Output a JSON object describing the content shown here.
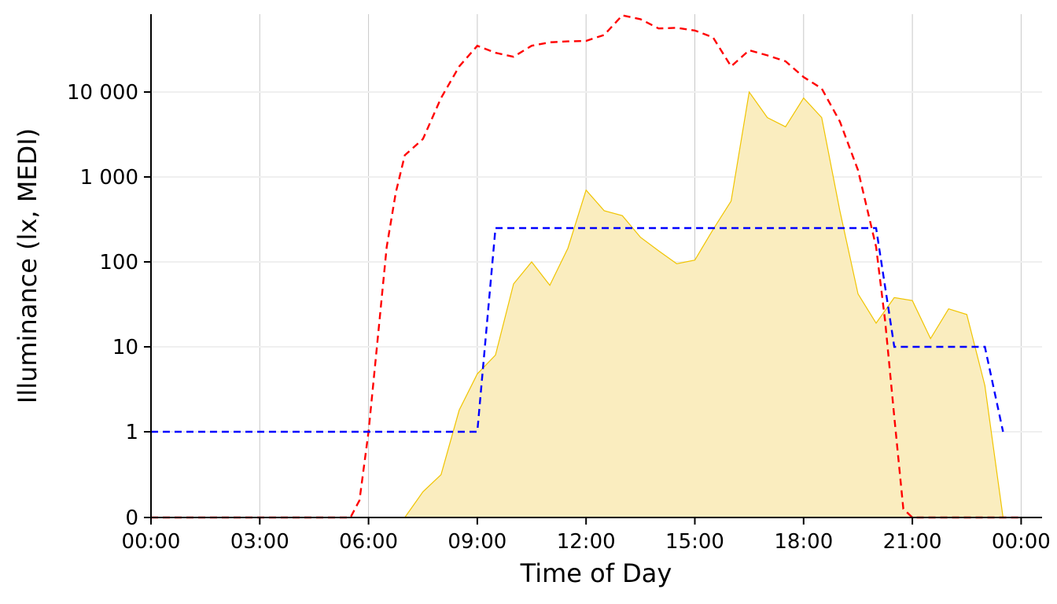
{
  "chart_data": {
    "type": "line",
    "xlabel": "Time of Day",
    "ylabel": "Illuminance (lx, MEDI)",
    "x_ticks": [
      "00:00",
      "03:00",
      "06:00",
      "09:00",
      "12:00",
      "15:00",
      "18:00",
      "21:00",
      "00:00"
    ],
    "y_ticks": [
      "0",
      "1",
      "10",
      "100",
      "1 000",
      "10 000"
    ],
    "xlim": [
      "00:00",
      "24:30"
    ],
    "y_scale": "symlog",
    "grid": "vertical major, faint horizontal",
    "legend": "none",
    "series": [
      {
        "type": "area",
        "color": "#f0c400",
        "fill": "#faedbf",
        "x": [
          "00:00",
          "06:30",
          "07:00",
          "07:30",
          "08:00",
          "08:30",
          "09:00",
          "09:30",
          "10:00",
          "10:30",
          "11:00",
          "11:30",
          "12:00",
          "12:30",
          "13:00",
          "13:30",
          "14:00",
          "14:30",
          "15:00",
          "15:30",
          "16:00",
          "16:30",
          "17:00",
          "17:30",
          "18:00",
          "18:30",
          "19:00",
          "19:30",
          "20:00",
          "20:30",
          "21:00",
          "21:30",
          "22:00",
          "22:30",
          "23:00",
          "23:30",
          "23:45"
        ],
        "y": [
          0,
          0,
          0,
          0.3,
          0.5,
          1.8,
          4.8,
          8.0,
          55,
          100,
          53,
          145,
          700,
          400,
          350,
          195,
          135,
          95,
          105,
          240,
          520,
          10000,
          5000,
          3900,
          8500,
          5000,
          400,
          42,
          19,
          38,
          35,
          12.5,
          28,
          24,
          3.5,
          0,
          0
        ]
      },
      {
        "type": "line",
        "style": "dashed",
        "color": "#ff0000",
        "x": [
          "00:00",
          "05:30",
          "05:45",
          "06:00",
          "06:15",
          "06:30",
          "06:45",
          "07:00",
          "07:30",
          "08:00",
          "08:30",
          "09:00",
          "09:30",
          "10:00",
          "10:30",
          "11:00",
          "11:30",
          "12:00",
          "12:30",
          "13:00",
          "13:30",
          "14:00",
          "14:30",
          "15:00",
          "15:30",
          "16:00",
          "16:30",
          "17:00",
          "17:30",
          "18:00",
          "18:30",
          "19:00",
          "19:30",
          "20:00",
          "20:15",
          "20:30",
          "20:45",
          "21:00",
          "21:15",
          "21:30",
          "24:00"
        ],
        "y": [
          0,
          0,
          0.2,
          1.0,
          12,
          150,
          650,
          1800,
          2800,
          8500,
          20000,
          35000,
          29000,
          26000,
          35000,
          38500,
          39500,
          40000,
          47000,
          80000,
          72000,
          56000,
          57000,
          53000,
          44000,
          20000,
          31000,
          27000,
          23000,
          15000,
          11000,
          4500,
          1200,
          150,
          20,
          1.5,
          0.1,
          0,
          0,
          0,
          0
        ]
      },
      {
        "type": "line",
        "style": "dashed",
        "color": "#0000ff",
        "x": [
          "00:00",
          "09:00",
          "09:30",
          "20:00",
          "20:30",
          "23:00",
          "23:30"
        ],
        "y": [
          1,
          1,
          250,
          250,
          10,
          10,
          1
        ]
      }
    ]
  }
}
